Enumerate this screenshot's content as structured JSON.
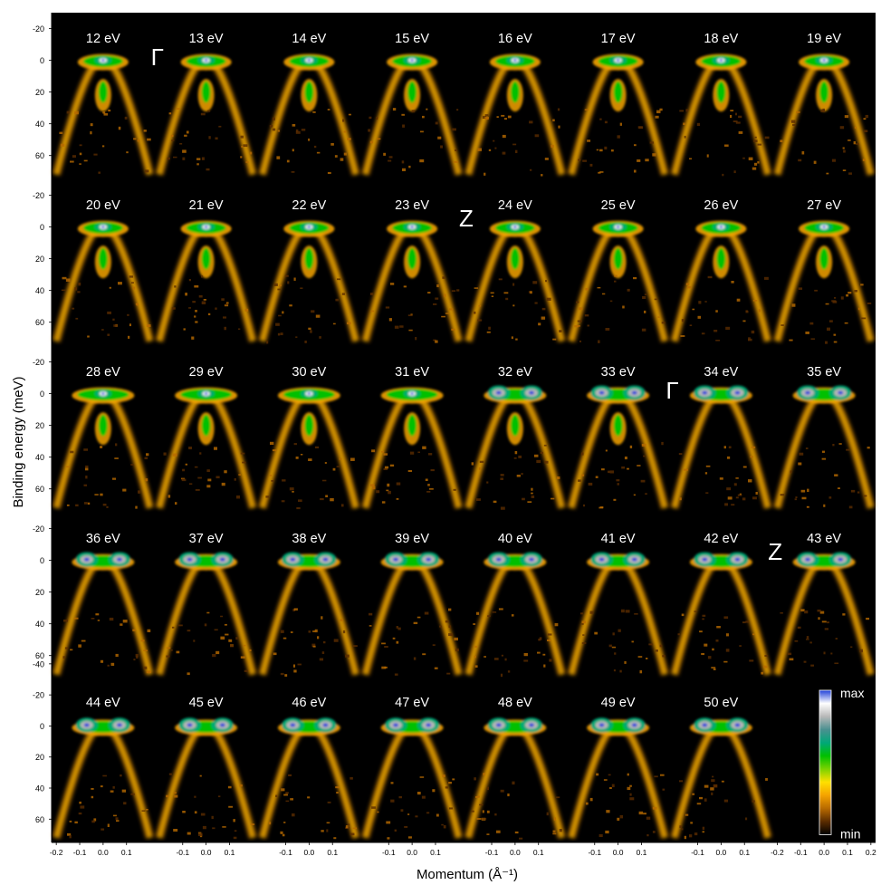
{
  "chart_data": {
    "type": "heatmap",
    "description_kind": "ARPES energy-momentum intensity maps, one panel per photon energy",
    "photon_energies": [
      [
        "12 eV",
        "13 eV",
        "14 eV",
        "15 eV",
        "16 eV",
        "17 eV",
        "18 eV",
        "19 eV"
      ],
      [
        "20 eV",
        "21 eV",
        "22 eV",
        "23 eV",
        "24 eV",
        "25 eV",
        "26 eV",
        "27 eV"
      ],
      [
        "28 eV",
        "29 eV",
        "30 eV",
        "31 eV",
        "32 eV",
        "33 eV",
        "34 eV",
        "35 eV"
      ],
      [
        "36 eV",
        "37 eV",
        "38 eV",
        "39 eV",
        "40 eV",
        "41 eV",
        "42 eV",
        "43 eV"
      ],
      [
        "44 eV",
        "45 eV",
        "46 eV",
        "47 eV",
        "48 eV",
        "49 eV",
        "50 eV"
      ]
    ],
    "kz_markers": [
      {
        "label": "Γ",
        "row": 0,
        "after_col": 0
      },
      {
        "label": "Z",
        "row": 1,
        "after_col": 3
      },
      {
        "label": "Γ",
        "row": 2,
        "after_col": 5
      },
      {
        "label": "Z",
        "row": 3,
        "after_col": 6
      }
    ],
    "xlabel": "Momentum (Å⁻¹)",
    "ylabel": "Binding energy (meV)",
    "x_ticks": [
      "-0.2",
      "-0.1",
      "0.0",
      "0.1",
      "0.2"
    ],
    "y_ticks": [
      "-20",
      "0",
      "20",
      "40",
      "60"
    ],
    "y_ticks_last_row": [
      "-40",
      "-20",
      "0",
      "20",
      "40",
      "60"
    ],
    "xlim": [
      -0.22,
      0.22
    ],
    "ylim": [
      75,
      -30
    ],
    "colorbar": {
      "max_label": "max",
      "min_label": "min",
      "colors": [
        "#000000",
        "#5a2c00",
        "#b86a00",
        "#f5a300",
        "#ffe000",
        "#7ad200",
        "#00c000",
        "#00a878",
        "#4a9090",
        "#b8b8b8",
        "#ffffff",
        "#2040d8"
      ]
    },
    "background": "#000000",
    "text_color": "#ffffff"
  }
}
